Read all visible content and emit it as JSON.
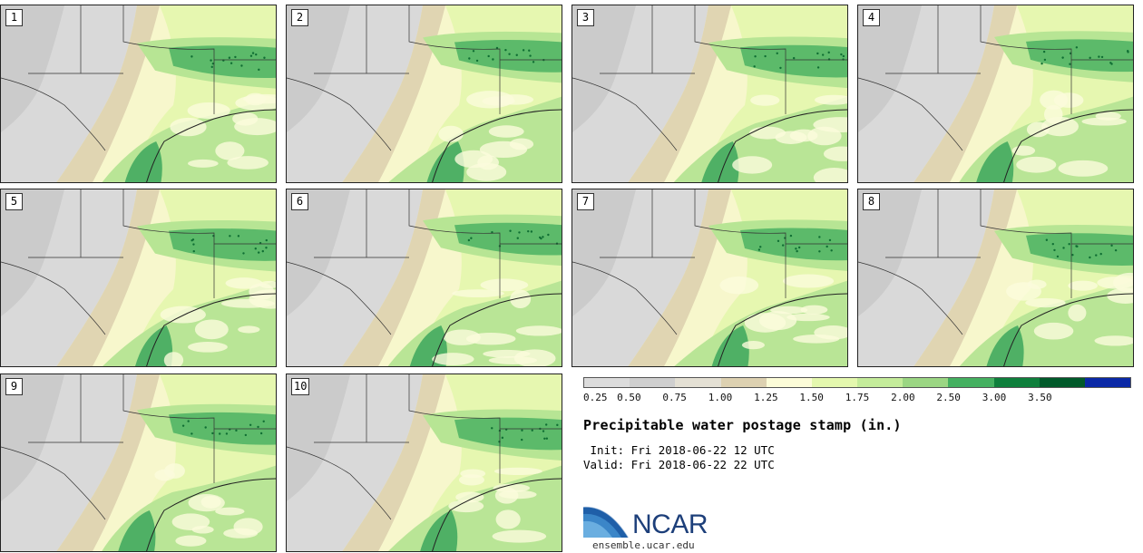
{
  "stamps": [
    {
      "label": "1"
    },
    {
      "label": "2"
    },
    {
      "label": "3"
    },
    {
      "label": "4"
    },
    {
      "label": "5"
    },
    {
      "label": "6"
    },
    {
      "label": "7"
    },
    {
      "label": "8"
    },
    {
      "label": "9"
    },
    {
      "label": "10"
    }
  ],
  "colorbar": {
    "colors": [
      "#dcdcdc",
      "#cfcfcf",
      "#e4e0d4",
      "#ddd1b1",
      "#fcfcd8",
      "#e4f8ae",
      "#c4ec9a",
      "#9bd683",
      "#44b060",
      "#0e7f3c",
      "#005a2a",
      "#0a28a6"
    ],
    "ticks": [
      "0.25",
      "0.50",
      "0.75",
      "1.00",
      "1.25",
      "1.50",
      "1.75",
      "2.00",
      "2.50",
      "3.00",
      "3.50"
    ]
  },
  "title": "Precipitable water postage stamp (in.)",
  "init_line": " Init: Fri 2018-06-22 12 UTC",
  "valid_line": "Valid: Fri 2018-06-22 22 UTC",
  "logo_text": "NCAR",
  "url": "ensemble.ucar.edu"
}
